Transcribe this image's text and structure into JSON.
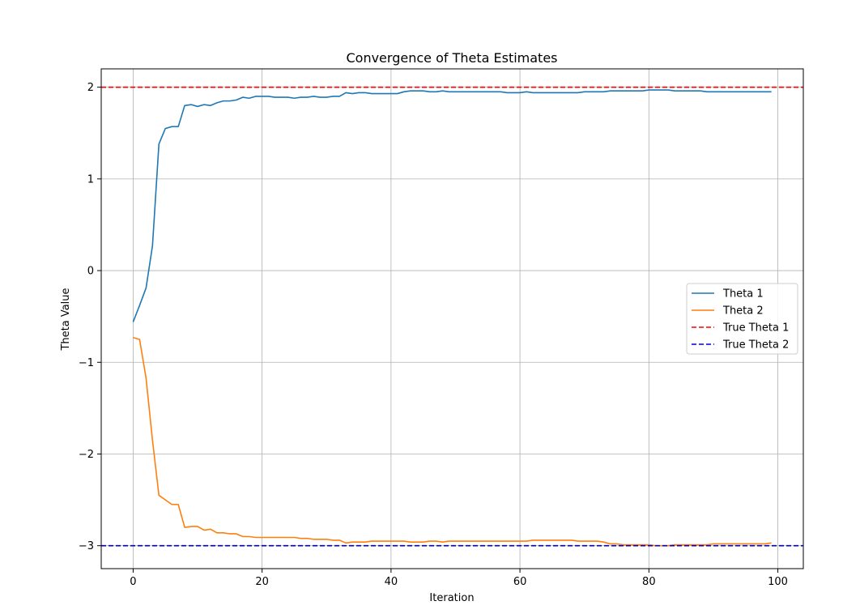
{
  "chart_data": {
    "type": "line",
    "title": "Convergence of Theta Estimates",
    "xlabel": "Iteration",
    "ylabel": "Theta Value",
    "xlim": [
      -4.95,
      103.95
    ],
    "ylim": [
      -3.25,
      2.2
    ],
    "xticks": [
      0,
      20,
      40,
      60,
      80,
      100
    ],
    "xtick_labels": [
      "0",
      "20",
      "40",
      "60",
      "80",
      "100"
    ],
    "yticks": [
      -3,
      -2,
      -1,
      0,
      1,
      2
    ],
    "ytick_labels": [
      "−3",
      "−2",
      "−1",
      "0",
      "1",
      "2"
    ],
    "grid": true,
    "legend_position": "center-right",
    "series": [
      {
        "name": "Theta 1",
        "color": "#1f77b4",
        "style": "solid",
        "x": [
          0,
          1,
          2,
          3,
          4,
          5,
          6,
          7,
          8,
          9,
          10,
          11,
          12,
          13,
          14,
          15,
          16,
          17,
          18,
          19,
          20,
          21,
          22,
          23,
          24,
          25,
          26,
          27,
          28,
          29,
          30,
          31,
          32,
          33,
          34,
          35,
          36,
          37,
          38,
          39,
          40,
          41,
          42,
          43,
          44,
          45,
          46,
          47,
          48,
          49,
          50,
          51,
          52,
          53,
          54,
          55,
          56,
          57,
          58,
          59,
          60,
          61,
          62,
          63,
          64,
          65,
          66,
          67,
          68,
          69,
          70,
          71,
          72,
          73,
          74,
          75,
          76,
          77,
          78,
          79,
          80,
          81,
          82,
          83,
          84,
          85,
          86,
          87,
          88,
          89,
          90,
          91,
          92,
          93,
          94,
          95,
          96,
          97,
          98,
          99
        ],
        "values": [
          -0.56,
          -0.38,
          -0.19,
          0.27,
          1.38,
          1.55,
          1.57,
          1.57,
          1.8,
          1.81,
          1.79,
          1.81,
          1.8,
          1.83,
          1.85,
          1.85,
          1.86,
          1.89,
          1.88,
          1.9,
          1.9,
          1.9,
          1.89,
          1.89,
          1.89,
          1.88,
          1.89,
          1.89,
          1.9,
          1.89,
          1.89,
          1.9,
          1.9,
          1.94,
          1.93,
          1.94,
          1.94,
          1.93,
          1.93,
          1.93,
          1.93,
          1.93,
          1.95,
          1.96,
          1.96,
          1.96,
          1.95,
          1.95,
          1.96,
          1.95,
          1.95,
          1.95,
          1.95,
          1.95,
          1.95,
          1.95,
          1.95,
          1.95,
          1.94,
          1.94,
          1.94,
          1.95,
          1.94,
          1.94,
          1.94,
          1.94,
          1.94,
          1.94,
          1.94,
          1.94,
          1.95,
          1.95,
          1.95,
          1.95,
          1.96,
          1.96,
          1.96,
          1.96,
          1.96,
          1.96,
          1.97,
          1.97,
          1.97,
          1.97,
          1.96,
          1.96,
          1.96,
          1.96,
          1.96,
          1.95,
          1.95,
          1.95,
          1.95,
          1.95,
          1.95,
          1.95,
          1.95,
          1.95,
          1.95,
          1.95
        ]
      },
      {
        "name": "Theta 2",
        "color": "#ff7f0e",
        "style": "solid",
        "x": [
          0,
          1,
          2,
          3,
          4,
          5,
          6,
          7,
          8,
          9,
          10,
          11,
          12,
          13,
          14,
          15,
          16,
          17,
          18,
          19,
          20,
          21,
          22,
          23,
          24,
          25,
          26,
          27,
          28,
          29,
          30,
          31,
          32,
          33,
          34,
          35,
          36,
          37,
          38,
          39,
          40,
          41,
          42,
          43,
          44,
          45,
          46,
          47,
          48,
          49,
          50,
          51,
          52,
          53,
          54,
          55,
          56,
          57,
          58,
          59,
          60,
          61,
          62,
          63,
          64,
          65,
          66,
          67,
          68,
          69,
          70,
          71,
          72,
          73,
          74,
          75,
          76,
          77,
          78,
          79,
          80,
          81,
          82,
          83,
          84,
          85,
          86,
          87,
          88,
          89,
          90,
          91,
          92,
          93,
          94,
          95,
          96,
          97,
          98,
          99
        ],
        "values": [
          -0.73,
          -0.75,
          -1.17,
          -1.85,
          -2.45,
          -2.5,
          -2.55,
          -2.55,
          -2.8,
          -2.79,
          -2.79,
          -2.83,
          -2.82,
          -2.86,
          -2.86,
          -2.87,
          -2.87,
          -2.9,
          -2.9,
          -2.91,
          -2.91,
          -2.91,
          -2.91,
          -2.91,
          -2.91,
          -2.91,
          -2.92,
          -2.92,
          -2.93,
          -2.93,
          -2.93,
          -2.94,
          -2.94,
          -2.97,
          -2.96,
          -2.96,
          -2.96,
          -2.95,
          -2.95,
          -2.95,
          -2.95,
          -2.95,
          -2.95,
          -2.96,
          -2.96,
          -2.96,
          -2.95,
          -2.95,
          -2.96,
          -2.95,
          -2.95,
          -2.95,
          -2.95,
          -2.95,
          -2.95,
          -2.95,
          -2.95,
          -2.95,
          -2.95,
          -2.95,
          -2.95,
          -2.95,
          -2.94,
          -2.94,
          -2.94,
          -2.94,
          -2.94,
          -2.94,
          -2.94,
          -2.95,
          -2.95,
          -2.95,
          -2.95,
          -2.96,
          -2.98,
          -2.98,
          -2.99,
          -2.99,
          -2.99,
          -2.99,
          -2.99,
          -3.0,
          -3.0,
          -3.0,
          -2.99,
          -2.99,
          -2.99,
          -2.99,
          -2.99,
          -2.99,
          -2.98,
          -2.98,
          -2.98,
          -2.98,
          -2.98,
          -2.98,
          -2.98,
          -2.98,
          -2.98,
          -2.97
        ]
      },
      {
        "name": "True Theta 1",
        "color": "#ff0000",
        "style": "dashed",
        "hline": 2
      },
      {
        "name": "True Theta 2",
        "color": "#0000cd",
        "style": "dashed",
        "hline": -3
      }
    ]
  }
}
